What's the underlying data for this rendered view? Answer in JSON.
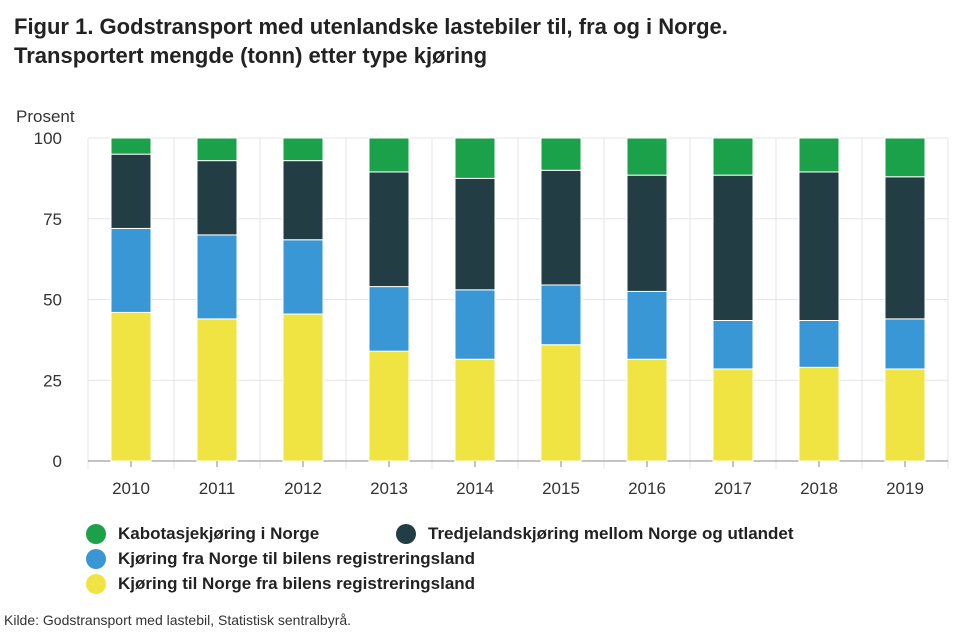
{
  "title": {
    "line1": "Figur 1. Godstransport med utenlandske lastebiler til, fra og i Norge.",
    "line2": "Transportert mengde (tonn) etter type kjøring"
  },
  "chart_data": {
    "type": "bar",
    "stacked": true,
    "ylabel": "Prosent",
    "ylim": [
      0,
      100
    ],
    "yticks": [
      0,
      25,
      50,
      75,
      100
    ],
    "categories": [
      "2010",
      "2011",
      "2012",
      "2013",
      "2014",
      "2015",
      "2016",
      "2017",
      "2018",
      "2019"
    ],
    "series": [
      {
        "name": "Kjøring til Norge fra bilens registreringsland",
        "color": "#f0e442",
        "values": [
          46,
          44,
          45.5,
          34,
          31.5,
          36,
          31.5,
          28.5,
          29,
          28.5
        ]
      },
      {
        "name": "Kjøring fra Norge til bilens registreringsland",
        "color": "#3a97d6",
        "values": [
          26,
          26,
          23,
          20,
          21.5,
          18.5,
          21,
          15,
          14.5,
          15.5
        ]
      },
      {
        "name": "Tredjelandskjøring mellom Norge og utlandet",
        "color": "#233d44",
        "values": [
          23,
          23,
          24.5,
          35.5,
          34.5,
          35.5,
          36,
          45,
          46,
          44
        ]
      },
      {
        "name": "Kabotasjekjøring i Norge",
        "color": "#1aa14a",
        "values": [
          5,
          7,
          7,
          10.5,
          12.5,
          10,
          11.5,
          11.5,
          10.5,
          12
        ]
      }
    ],
    "legend_position": "bottom"
  },
  "source": "Kilde: Godstransport med lastebil, Statistisk sentralbyrå."
}
